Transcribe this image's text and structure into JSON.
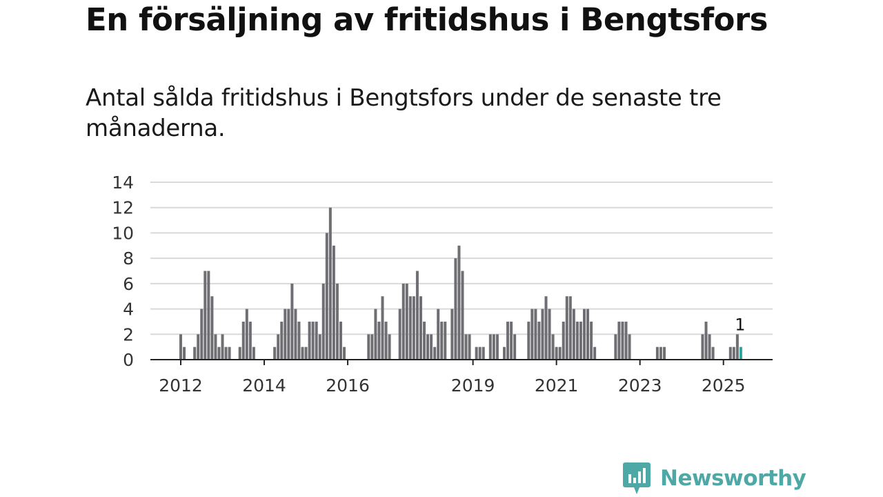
{
  "title": "En försäljning av fritidshus i Bengtsfors",
  "subtitle": "Antal sålda fritidshus i Bengtsfors under de senaste tre månaderna.",
  "brand": {
    "name": "Newsworthy",
    "logo_icon": "newsworthy-bar-chart-logo-icon"
  },
  "colors": {
    "bar": "#6e6e73",
    "highlight": "#2ca59c",
    "grid": "#d9d9d9",
    "axis": "#222222",
    "brand": "#4da8a6"
  },
  "chart_data": {
    "type": "bar",
    "title": "En försäljning av fritidshus i Bengtsfors",
    "xlabel": "",
    "ylabel": "",
    "ylim": [
      0,
      14
    ],
    "yticks": [
      0,
      2,
      4,
      6,
      8,
      10,
      12,
      14
    ],
    "grid": true,
    "x_start": "2012-01",
    "x_end": "2025-07",
    "xtick_labels": [
      {
        "label": "2012",
        "x": "2012-01"
      },
      {
        "label": "2014",
        "x": "2014-01"
      },
      {
        "label": "2016",
        "x": "2016-01"
      },
      {
        "label": "2019",
        "x": "2019-01"
      },
      {
        "label": "2021",
        "x": "2021-01"
      },
      {
        "label": "2023",
        "x": "2023-01"
      },
      {
        "label": "2025",
        "x": "2025-01"
      }
    ],
    "bars": [
      {
        "x": "2012-01",
        "value": 2
      },
      {
        "x": "2012-02",
        "value": 1
      },
      {
        "x": "2012-05",
        "value": 1
      },
      {
        "x": "2012-06",
        "value": 2
      },
      {
        "x": "2012-07",
        "value": 4
      },
      {
        "x": "2012-08",
        "value": 7
      },
      {
        "x": "2012-09",
        "value": 7
      },
      {
        "x": "2012-10",
        "value": 5
      },
      {
        "x": "2012-11",
        "value": 2
      },
      {
        "x": "2012-12",
        "value": 1
      },
      {
        "x": "2013-01",
        "value": 2
      },
      {
        "x": "2013-02",
        "value": 1
      },
      {
        "x": "2013-03",
        "value": 1
      },
      {
        "x": "2013-06",
        "value": 1
      },
      {
        "x": "2013-07",
        "value": 3
      },
      {
        "x": "2013-08",
        "value": 4
      },
      {
        "x": "2013-09",
        "value": 3
      },
      {
        "x": "2013-10",
        "value": 1
      },
      {
        "x": "2014-04",
        "value": 1
      },
      {
        "x": "2014-05",
        "value": 2
      },
      {
        "x": "2014-06",
        "value": 3
      },
      {
        "x": "2014-07",
        "value": 4
      },
      {
        "x": "2014-08",
        "value": 4
      },
      {
        "x": "2014-09",
        "value": 6
      },
      {
        "x": "2014-10",
        "value": 4
      },
      {
        "x": "2014-11",
        "value": 3
      },
      {
        "x": "2014-12",
        "value": 1
      },
      {
        "x": "2015-01",
        "value": 1
      },
      {
        "x": "2015-02",
        "value": 3
      },
      {
        "x": "2015-03",
        "value": 3
      },
      {
        "x": "2015-04",
        "value": 3
      },
      {
        "x": "2015-05",
        "value": 2
      },
      {
        "x": "2015-06",
        "value": 6
      },
      {
        "x": "2015-07",
        "value": 10
      },
      {
        "x": "2015-08",
        "value": 12
      },
      {
        "x": "2015-09",
        "value": 9
      },
      {
        "x": "2015-10",
        "value": 6
      },
      {
        "x": "2015-11",
        "value": 3
      },
      {
        "x": "2015-12",
        "value": 1
      },
      {
        "x": "2016-07",
        "value": 2
      },
      {
        "x": "2016-08",
        "value": 2
      },
      {
        "x": "2016-09",
        "value": 4
      },
      {
        "x": "2016-10",
        "value": 3
      },
      {
        "x": "2016-11",
        "value": 5
      },
      {
        "x": "2016-12",
        "value": 3
      },
      {
        "x": "2017-01",
        "value": 2
      },
      {
        "x": "2017-04",
        "value": 4
      },
      {
        "x": "2017-05",
        "value": 6
      },
      {
        "x": "2017-06",
        "value": 6
      },
      {
        "x": "2017-07",
        "value": 5
      },
      {
        "x": "2017-08",
        "value": 5
      },
      {
        "x": "2017-09",
        "value": 7
      },
      {
        "x": "2017-10",
        "value": 5
      },
      {
        "x": "2017-11",
        "value": 3
      },
      {
        "x": "2017-12",
        "value": 2
      },
      {
        "x": "2018-01",
        "value": 2
      },
      {
        "x": "2018-02",
        "value": 1
      },
      {
        "x": "2018-03",
        "value": 4
      },
      {
        "x": "2018-04",
        "value": 3
      },
      {
        "x": "2018-05",
        "value": 3
      },
      {
        "x": "2018-07",
        "value": 4
      },
      {
        "x": "2018-08",
        "value": 8
      },
      {
        "x": "2018-09",
        "value": 9
      },
      {
        "x": "2018-10",
        "value": 7
      },
      {
        "x": "2018-11",
        "value": 2
      },
      {
        "x": "2018-12",
        "value": 2
      },
      {
        "x": "2019-02",
        "value": 1
      },
      {
        "x": "2019-03",
        "value": 1
      },
      {
        "x": "2019-04",
        "value": 1
      },
      {
        "x": "2019-06",
        "value": 2
      },
      {
        "x": "2019-07",
        "value": 2
      },
      {
        "x": "2019-08",
        "value": 2
      },
      {
        "x": "2019-10",
        "value": 1
      },
      {
        "x": "2019-11",
        "value": 3
      },
      {
        "x": "2019-12",
        "value": 3
      },
      {
        "x": "2020-01",
        "value": 2
      },
      {
        "x": "2020-05",
        "value": 3
      },
      {
        "x": "2020-06",
        "value": 4
      },
      {
        "x": "2020-07",
        "value": 4
      },
      {
        "x": "2020-08",
        "value": 3
      },
      {
        "x": "2020-09",
        "value": 4
      },
      {
        "x": "2020-10",
        "value": 5
      },
      {
        "x": "2020-11",
        "value": 4
      },
      {
        "x": "2020-12",
        "value": 2
      },
      {
        "x": "2021-01",
        "value": 1
      },
      {
        "x": "2021-02",
        "value": 1
      },
      {
        "x": "2021-03",
        "value": 3
      },
      {
        "x": "2021-04",
        "value": 5
      },
      {
        "x": "2021-05",
        "value": 5
      },
      {
        "x": "2021-06",
        "value": 4
      },
      {
        "x": "2021-07",
        "value": 3
      },
      {
        "x": "2021-08",
        "value": 3
      },
      {
        "x": "2021-09",
        "value": 4
      },
      {
        "x": "2021-10",
        "value": 4
      },
      {
        "x": "2021-11",
        "value": 3
      },
      {
        "x": "2021-12",
        "value": 1
      },
      {
        "x": "2022-06",
        "value": 2
      },
      {
        "x": "2022-07",
        "value": 3
      },
      {
        "x": "2022-08",
        "value": 3
      },
      {
        "x": "2022-09",
        "value": 3
      },
      {
        "x": "2022-10",
        "value": 2
      },
      {
        "x": "2023-06",
        "value": 1
      },
      {
        "x": "2023-07",
        "value": 1
      },
      {
        "x": "2023-08",
        "value": 1
      },
      {
        "x": "2024-07",
        "value": 2
      },
      {
        "x": "2024-08",
        "value": 3
      },
      {
        "x": "2024-09",
        "value": 2
      },
      {
        "x": "2024-10",
        "value": 1
      },
      {
        "x": "2025-03",
        "value": 1
      },
      {
        "x": "2025-04",
        "value": 1
      },
      {
        "x": "2025-05",
        "value": 2
      },
      {
        "x": "2025-06",
        "value": 1,
        "highlight": true
      }
    ],
    "annotations": [
      {
        "x": "2025-05",
        "text": "1"
      }
    ]
  }
}
